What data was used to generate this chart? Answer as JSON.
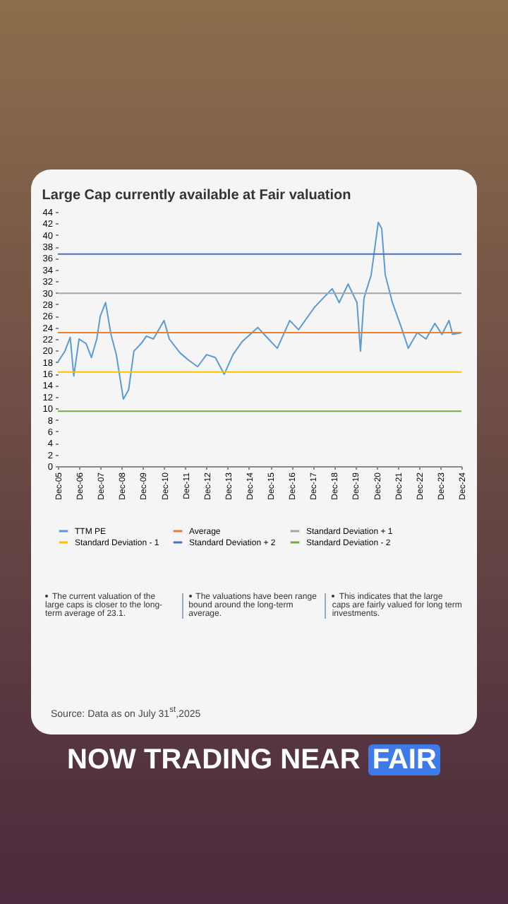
{
  "chart_data": {
    "type": "line",
    "title": "Large Cap currently available at Fair valuation",
    "xlim": [
      "2005-12",
      "2024-12"
    ],
    "xticks": [
      {
        "value": "2005-12",
        "label": "Dec-05"
      },
      {
        "value": "2006-12",
        "label": "Dec-06"
      },
      {
        "value": "2007-12",
        "label": "Dec-07"
      },
      {
        "value": "2008-12",
        "label": "Dec-08"
      },
      {
        "value": "2009-12",
        "label": "Dec-09"
      },
      {
        "value": "2010-12",
        "label": "Dec-10"
      },
      {
        "value": "2011-12",
        "label": "Dec-11"
      },
      {
        "value": "2012-12",
        "label": "Dec-12"
      },
      {
        "value": "2013-12",
        "label": "Dec-13"
      },
      {
        "value": "2014-12",
        "label": "Dec-14"
      },
      {
        "value": "2015-12",
        "label": "Dec-15"
      },
      {
        "value": "2016-12",
        "label": "Dec-16"
      },
      {
        "value": "2017-12",
        "label": "Dec-17"
      },
      {
        "value": "2018-12",
        "label": "Dec-18"
      },
      {
        "value": "2019-12",
        "label": "Dec-19"
      },
      {
        "value": "2020-12",
        "label": "Dec-20"
      },
      {
        "value": "2021-12",
        "label": "Dec-21"
      },
      {
        "value": "2022-12",
        "label": "Dec-22"
      },
      {
        "value": "2023-12",
        "label": "Dec-23"
      },
      {
        "value": "2024-12",
        "label": "Dec-24"
      }
    ],
    "ylim": [
      0,
      44
    ],
    "yticks": [
      0,
      2,
      4,
      6,
      8,
      10,
      12,
      14,
      16,
      18,
      20,
      22,
      24,
      26,
      28,
      30,
      32,
      34,
      36,
      38,
      40,
      42,
      44
    ],
    "grid": false,
    "legend": "bottom",
    "line_style": "solid",
    "marker": "none",
    "series": [
      {
        "name": "TTM PE",
        "color": "#5b9bd5",
        "x": [
          "2005-12",
          "2006-04",
          "2006-07",
          "2006-09",
          "2006-12",
          "2007-04",
          "2007-07",
          "2007-10",
          "2007-12",
          "2008-03",
          "2008-06",
          "2008-09",
          "2009-01",
          "2009-04",
          "2009-07",
          "2009-11",
          "2010-02",
          "2010-06",
          "2010-12",
          "2011-03",
          "2011-09",
          "2012-02",
          "2012-07",
          "2012-12",
          "2013-05",
          "2013-10",
          "2014-03",
          "2014-08",
          "2015-05",
          "2015-11",
          "2016-04",
          "2016-11",
          "2017-04",
          "2018-01",
          "2018-06",
          "2018-11",
          "2019-03",
          "2019-08",
          "2020-01",
          "2020-03",
          "2020-05",
          "2020-09",
          "2021-01",
          "2021-03",
          "2021-05",
          "2021-09",
          "2022-02",
          "2022-06",
          "2022-11",
          "2023-04",
          "2023-09",
          "2024-01",
          "2024-05",
          "2024-07",
          "2024-12"
        ],
        "values": [
          18.0,
          19.9,
          22.3,
          15.6,
          22.0,
          21.2,
          18.8,
          22.0,
          26.0,
          28.3,
          22.8,
          19.3,
          11.6,
          13.2,
          19.9,
          21.2,
          22.5,
          22.0,
          25.2,
          22.0,
          19.6,
          18.3,
          17.2,
          19.3,
          18.8,
          15.9,
          19.3,
          21.5,
          24.0,
          22.0,
          20.4,
          25.2,
          23.6,
          27.5,
          29.1,
          30.7,
          28.3,
          31.5,
          28.3,
          19.9,
          29.1,
          33.1,
          42.2,
          41.1,
          33.1,
          28.3,
          24.0,
          20.4,
          23.1,
          22.0,
          24.7,
          22.8,
          25.2,
          22.8,
          23.1
        ]
      },
      {
        "name": "Average",
        "color": "#ed7d31",
        "x": [
          "2005-12",
          "2024-12"
        ],
        "values": [
          23.1,
          23.1
        ]
      },
      {
        "name": "Standard Deviation + 1",
        "color": "#a5a5a5",
        "x": [
          "2005-12",
          "2024-12"
        ],
        "values": [
          29.9,
          29.9
        ]
      },
      {
        "name": "Standard Deviation - 1",
        "color": "#ffc000",
        "x": [
          "2005-12",
          "2024-12"
        ],
        "values": [
          16.3,
          16.3
        ]
      },
      {
        "name": "Standard Deviation + 2",
        "color": "#4472c4",
        "x": [
          "2005-12",
          "2024-12"
        ],
        "values": [
          36.7,
          36.7
        ]
      },
      {
        "name": "Standard Deviation - 2",
        "color": "#70ad47",
        "x": [
          "2005-12",
          "2024-12"
        ],
        "values": [
          9.5,
          9.5
        ]
      }
    ],
    "annotations": [
      "The current valuation of the large caps is closer to the long-term average of 23.1.",
      "The valuations have been range bound around the long-term average.",
      "This indicates that the large caps are fairly valued for long term investments.",
      "Source: Data as on July 31$^{st}$,2025",
      "NOW TRADING NEAR",
      "FAIR"
    ]
  }
}
